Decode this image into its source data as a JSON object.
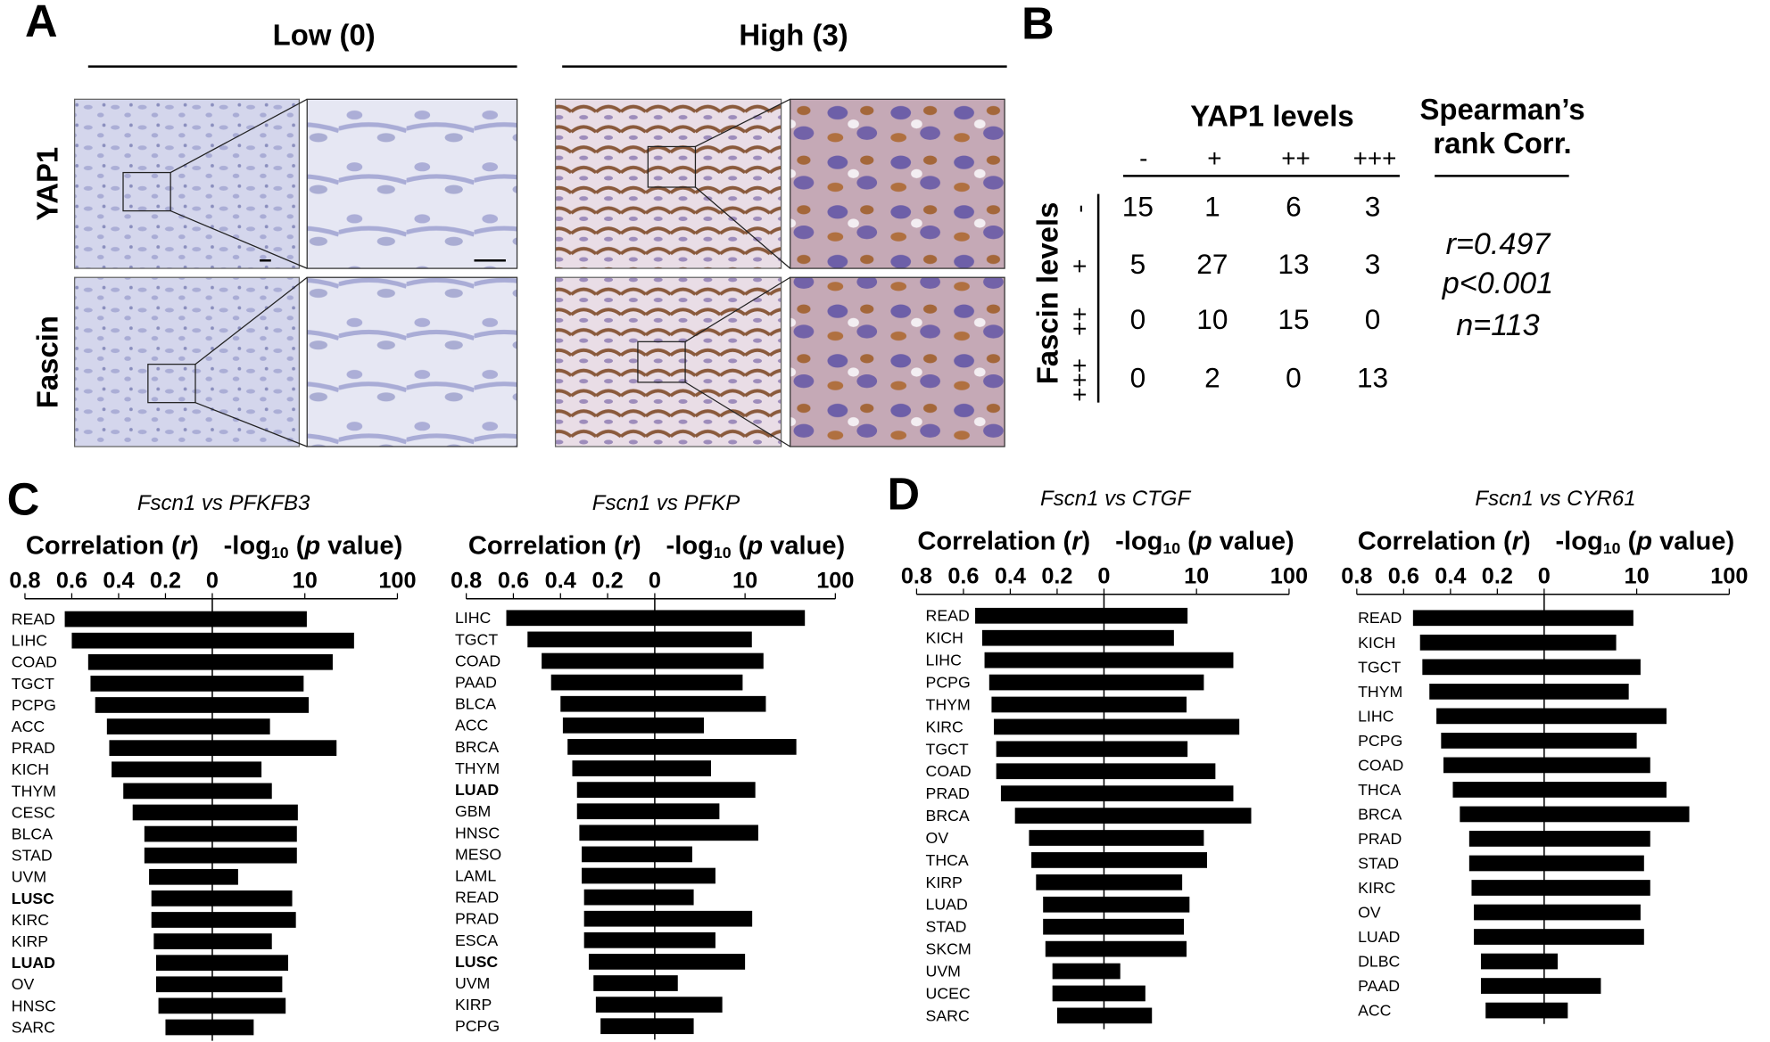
{
  "panel_labels": [
    "A",
    "B",
    "C",
    "D"
  ],
  "panel_a": {
    "columns": [
      "Low (0)",
      "High (3)"
    ],
    "rows": [
      "YAP1",
      "Fascin"
    ]
  },
  "panel_b": {
    "title": "YAP1 levels",
    "columns": [
      "-",
      "+",
      "++",
      "+++"
    ],
    "row_title": "Fascin levels",
    "rows": [
      "-",
      "+",
      "++",
      "+++"
    ],
    "cells": [
      [
        15,
        1,
        6,
        3
      ],
      [
        5,
        27,
        13,
        3
      ],
      [
        0,
        10,
        15,
        0
      ],
      [
        0,
        2,
        0,
        13
      ]
    ],
    "stat_title": [
      "Spearman’s",
      "rank Corr."
    ],
    "stats": [
      "r=0.497",
      "p<0.001",
      "n=113"
    ]
  },
  "chart_data": [
    {
      "type": "diverging_bar",
      "title": "Fscn1 vs PFKFB3",
      "left_axis_label": {
        "text": "Correlation (",
        "italic": "r",
        "end": ")"
      },
      "right_axis_label": {
        "text": "-log",
        "sub": "10",
        "mid": " (",
        "italic": "p",
        "end": " value)"
      },
      "categories": [
        "READ",
        "LIHC",
        "COAD",
        "TGCT",
        "PCPG",
        "ACC",
        "PRAD",
        "KICH",
        "THYM",
        "CESC",
        "BLCA",
        "STAD",
        "UVM",
        "LUSC",
        "KIRC",
        "KIRP",
        "LUAD",
        "OV",
        "HNSC",
        "SARC"
      ],
      "label_colors": [
        "#000",
        "#000",
        "#000",
        "#000",
        "#000",
        "#000",
        "#000",
        "#000",
        "#000",
        "#000",
        "#000",
        "#000",
        "#000",
        "#c0141e",
        "#000",
        "#000",
        "#c0141e",
        "#000",
        "#000",
        "#000"
      ],
      "label_bold": [
        false,
        false,
        false,
        false,
        false,
        false,
        false,
        false,
        false,
        false,
        false,
        false,
        false,
        true,
        false,
        false,
        true,
        false,
        false,
        false
      ],
      "series": [
        {
          "axis": "x",
          "color": "#000",
          "values": [
            0.63,
            0.6,
            0.53,
            0.52,
            0.5,
            0.45,
            0.44,
            0.43,
            0.38,
            0.34,
            0.29,
            0.29,
            0.27,
            0.26,
            0.26,
            0.25,
            0.24,
            0.24,
            0.23,
            0.2
          ]
        },
        {
          "axis": "x2",
          "color": "#000",
          "values": [
            10.5,
            34,
            20,
            9.7,
            11,
            4.2,
            22,
            3.4,
            4.4,
            8.4,
            8.2,
            8.2,
            1.9,
            7.3,
            8,
            4.4,
            6.6,
            5.7,
            6.2,
            2.8
          ]
        }
      ],
      "xlim": [
        0,
        0.8
      ],
      "xticks": [
        0.8,
        0.6,
        0.4,
        0.2,
        0
      ],
      "x2lim": [
        1,
        100
      ],
      "x2ticks": [
        10,
        100
      ],
      "x2_log": true
    },
    {
      "type": "diverging_bar",
      "title": "Fscn1 vs PFKP",
      "left_axis_label": {
        "text": "Correlation (",
        "italic": "r",
        "end": ")"
      },
      "right_axis_label": {
        "text": "-log",
        "sub": "10",
        "mid": " (",
        "italic": "p",
        "end": " value)"
      },
      "categories": [
        "LIHC",
        "TGCT",
        "COAD",
        "PAAD",
        "BLCA",
        "ACC",
        "BRCA",
        "THYM",
        "LUAD",
        "GBM",
        "HNSC",
        "MESO",
        "LAML",
        "READ",
        "PRAD",
        "ESCA",
        "LUSC",
        "UVM",
        "KIRP",
        "PCPG"
      ],
      "label_colors": [
        "#000",
        "#000",
        "#000",
        "#000",
        "#000",
        "#000",
        "#000",
        "#000",
        "#c0141e",
        "#000",
        "#000",
        "#000",
        "#000",
        "#000",
        "#000",
        "#000",
        "#c0141e",
        "#000",
        "#000",
        "#000"
      ],
      "label_bold": [
        false,
        false,
        false,
        false,
        false,
        false,
        false,
        false,
        true,
        false,
        false,
        false,
        false,
        false,
        false,
        false,
        true,
        false,
        false,
        false
      ],
      "series": [
        {
          "axis": "x",
          "color": "#000",
          "values": [
            0.63,
            0.54,
            0.48,
            0.44,
            0.4,
            0.39,
            0.37,
            0.35,
            0.33,
            0.33,
            0.32,
            0.31,
            0.31,
            0.3,
            0.3,
            0.3,
            0.28,
            0.26,
            0.25,
            0.23
          ]
        },
        {
          "axis": "x2",
          "color": "#000",
          "values": [
            46,
            11.9,
            16,
            9.4,
            17,
            3.5,
            37,
            4.2,
            13,
            5.2,
            14,
            2.6,
            4.7,
            2.7,
            12,
            4.7,
            10,
            1.8,
            5.6,
            2.7
          ]
        }
      ],
      "xlim": [
        0,
        0.8
      ],
      "xticks": [
        0.8,
        0.6,
        0.4,
        0.2,
        0
      ],
      "x2lim": [
        1,
        100
      ],
      "x2ticks": [
        10,
        100
      ],
      "x2_log": true
    },
    {
      "type": "diverging_bar",
      "title": "Fscn1 vs CTGF",
      "left_axis_label": {
        "text": "Correlation (",
        "italic": "r",
        "end": ")"
      },
      "right_axis_label": {
        "text": "-log",
        "sub": "10",
        "mid": " (",
        "italic": "p",
        "end": " value)"
      },
      "categories": [
        "READ",
        "KICH",
        "LIHC",
        "PCPG",
        "THYM",
        "KIRC",
        "TGCT",
        "COAD",
        "PRAD",
        "BRCA",
        "OV",
        "THCA",
        "KIRP",
        "LUAD",
        "STAD",
        "SKCM",
        "UVM",
        "UCEC",
        "SARC"
      ],
      "label_colors": [
        "#000",
        "#000",
        "#000",
        "#000",
        "#000",
        "#000",
        "#000",
        "#000",
        "#000",
        "#000",
        "#000",
        "#000",
        "#000",
        "#c0141e",
        "#000",
        "#000",
        "#000",
        "#000",
        "#000"
      ],
      "label_bold": [
        false,
        false,
        false,
        false,
        false,
        false,
        false,
        false,
        false,
        false,
        false,
        false,
        false,
        false,
        false,
        false,
        false,
        false,
        false
      ],
      "series": [
        {
          "axis": "x",
          "color": "#000",
          "values": [
            0.55,
            0.52,
            0.51,
            0.49,
            0.48,
            0.47,
            0.46,
            0.46,
            0.44,
            0.38,
            0.32,
            0.31,
            0.29,
            0.26,
            0.26,
            0.25,
            0.22,
            0.22,
            0.2
          ]
        },
        {
          "axis": "x2",
          "color": "#000",
          "values": [
            8,
            5.7,
            25,
            12,
            7.8,
            29,
            8,
            16,
            25,
            39,
            12,
            13,
            7,
            8.4,
            7.3,
            7.8,
            1.5,
            2.8,
            3.3
          ]
        }
      ],
      "xlim": [
        0,
        0.8
      ],
      "xticks": [
        0.8,
        0.6,
        0.4,
        0.2,
        0
      ],
      "x2lim": [
        1,
        100
      ],
      "x2ticks": [
        10,
        100
      ],
      "x2_log": true
    },
    {
      "type": "diverging_bar",
      "title": "Fscn1 vs CYR61",
      "left_axis_label": {
        "text": "Correlation (",
        "italic": "r",
        "end": ")"
      },
      "right_axis_label": {
        "text": "-log",
        "sub": "10",
        "mid": " (",
        "italic": "p",
        "end": " value)"
      },
      "categories": [
        "READ",
        "KICH",
        "TGCT",
        "THYM",
        "LIHC",
        "PCPG",
        "COAD",
        "THCA",
        "BRCA",
        "PRAD",
        "STAD",
        "KIRC",
        "OV",
        "LUAD",
        "DLBC",
        "PAAD",
        "ACC"
      ],
      "label_colors": [
        "#000",
        "#000",
        "#000",
        "#000",
        "#000",
        "#000",
        "#000",
        "#000",
        "#000",
        "#000",
        "#000",
        "#000",
        "#000",
        "#c0141e",
        "#000",
        "#000",
        "#000"
      ],
      "label_bold": [
        false,
        false,
        false,
        false,
        false,
        false,
        false,
        false,
        false,
        false,
        false,
        false,
        false,
        false,
        false,
        false,
        false
      ],
      "series": [
        {
          "axis": "x",
          "color": "#000",
          "values": [
            0.56,
            0.53,
            0.52,
            0.49,
            0.46,
            0.44,
            0.43,
            0.39,
            0.36,
            0.32,
            0.32,
            0.31,
            0.3,
            0.3,
            0.27,
            0.27,
            0.25
          ]
        },
        {
          "axis": "x2",
          "color": "#000",
          "values": [
            9.2,
            6,
            11,
            8.2,
            21,
            10,
            14,
            21,
            37,
            14,
            12,
            14,
            11,
            12,
            1.4,
            4.1,
            1.8
          ]
        }
      ],
      "xlim": [
        0,
        0.8
      ],
      "xticks": [
        0.8,
        0.6,
        0.4,
        0.2,
        0
      ],
      "x2lim": [
        1,
        100
      ],
      "x2ticks": [
        10,
        100
      ],
      "x2_log": true
    }
  ]
}
